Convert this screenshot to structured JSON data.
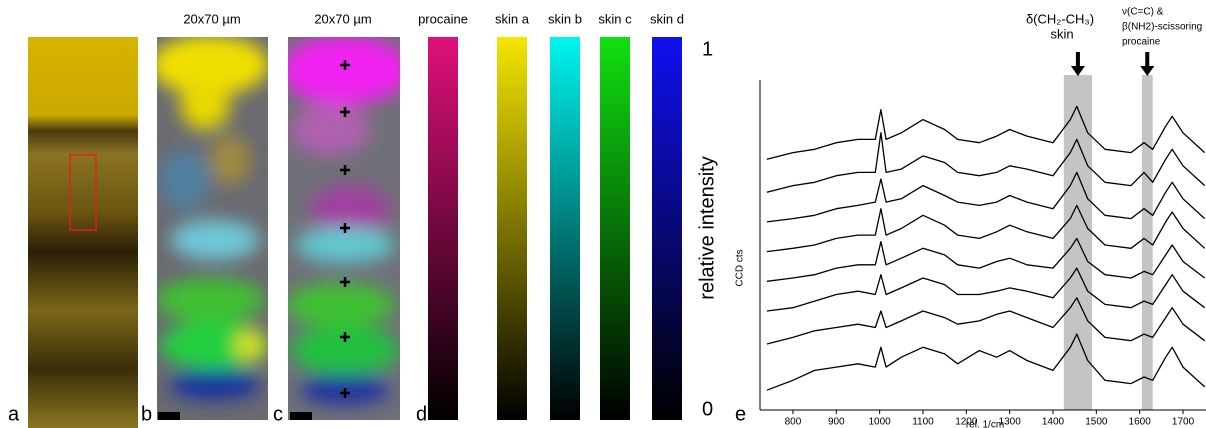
{
  "panels": {
    "a": {
      "label": "a"
    },
    "b": {
      "label": "b",
      "title": "20x70 µm"
    },
    "c": {
      "label": "c",
      "title": "20x70 µm"
    },
    "d": {
      "label": "d",
      "colorbars": [
        "procaine",
        "skin a",
        "skin b",
        "skin c",
        "skin d"
      ],
      "max_label": "1",
      "min_label": "0",
      "axis_label": "relative intensity"
    },
    "e": {
      "label": "e"
    }
  },
  "chart_data": {
    "type": "line",
    "x_label": "rel. 1/cm",
    "y_label": "CCD cts",
    "annotations": [
      "δ(CH₂-CH₃)",
      "skin",
      "ν(C=C) &",
      "β(NH2)-scissoring",
      "procaine"
    ],
    "highlight_bands": [
      [
        1425,
        1490
      ],
      [
        1605,
        1630
      ]
    ],
    "xlim": [
      724,
      1753
    ],
    "xticks": [
      800,
      900,
      1000,
      1100,
      1200,
      1300,
      1400,
      1500,
      1600,
      1700
    ],
    "ylim": [
      0,
      10
    ],
    "x": [
      740,
      800,
      850,
      900,
      950,
      990,
      1003,
      1015,
      1050,
      1100,
      1150,
      1180,
      1230,
      1270,
      1300,
      1340,
      1400,
      1440,
      1455,
      1480,
      1520,
      1580,
      1610,
      1630,
      1660,
      1675,
      1700,
      1750
    ],
    "series": [
      {
        "color": "#000000",
        "values": [
          7.6,
          7.8,
          7.9,
          8.1,
          8.2,
          8.2,
          9.1,
          8.2,
          8.4,
          8.8,
          8.5,
          8.2,
          8.1,
          8.3,
          8.5,
          8.3,
          8.1,
          8.8,
          9.2,
          8.4,
          7.9,
          7.8,
          8.1,
          7.9,
          8.6,
          8.9,
          8.4,
          7.8
        ]
      },
      {
        "color": "#000000",
        "values": [
          6.6,
          6.8,
          6.9,
          7.1,
          7.2,
          7.2,
          8.4,
          7.2,
          7.3,
          7.7,
          7.5,
          7.2,
          7.1,
          7.2,
          7.4,
          7.3,
          7.1,
          7.8,
          8.2,
          7.4,
          6.9,
          6.8,
          7.2,
          6.9,
          7.6,
          7.9,
          7.4,
          6.8
        ]
      },
      {
        "color": "#000000",
        "values": [
          5.7,
          5.8,
          5.9,
          6.1,
          6.2,
          6.3,
          7.0,
          6.3,
          6.4,
          6.8,
          6.5,
          6.3,
          6.2,
          6.3,
          6.5,
          6.3,
          6.1,
          6.8,
          7.2,
          6.4,
          5.9,
          5.8,
          6.1,
          5.9,
          6.6,
          6.9,
          6.4,
          5.8
        ]
      },
      {
        "color": "#000000",
        "values": [
          4.8,
          4.9,
          5.0,
          5.2,
          5.3,
          5.3,
          6.1,
          5.3,
          5.5,
          5.9,
          5.6,
          5.3,
          5.2,
          5.4,
          5.6,
          5.4,
          5.2,
          5.8,
          6.2,
          5.5,
          5.0,
          4.9,
          5.2,
          5.0,
          5.7,
          6.0,
          5.5,
          4.9
        ]
      },
      {
        "color": "#000000",
        "values": [
          3.9,
          4.0,
          4.1,
          4.3,
          4.4,
          4.4,
          5.1,
          4.4,
          4.6,
          4.9,
          4.7,
          4.4,
          4.3,
          4.5,
          4.6,
          4.4,
          4.3,
          4.9,
          5.2,
          4.5,
          4.1,
          4.0,
          4.2,
          4.1,
          4.7,
          5.0,
          4.5,
          4.0
        ]
      },
      {
        "color": "#000000",
        "values": [
          3.0,
          3.1,
          3.3,
          3.5,
          3.6,
          3.5,
          4.1,
          3.5,
          3.7,
          4.0,
          3.8,
          3.5,
          3.5,
          3.6,
          3.7,
          3.6,
          3.4,
          4.0,
          4.3,
          3.6,
          3.2,
          3.1,
          3.3,
          3.2,
          3.8,
          4.1,
          3.6,
          3.1
        ]
      },
      {
        "color": "#000000",
        "values": [
          2.0,
          2.2,
          2.4,
          2.5,
          2.6,
          2.5,
          3.0,
          2.5,
          2.7,
          3.0,
          2.8,
          2.6,
          2.7,
          2.9,
          3.0,
          2.8,
          2.5,
          3.1,
          3.4,
          2.7,
          2.2,
          2.1,
          2.3,
          2.2,
          2.8,
          3.1,
          2.6,
          2.1
        ]
      },
      {
        "color": "#000000",
        "values": [
          0.6,
          0.9,
          1.2,
          1.3,
          1.4,
          1.3,
          1.9,
          1.3,
          1.6,
          1.9,
          1.7,
          1.4,
          1.8,
          1.6,
          1.8,
          1.5,
          1.2,
          1.9,
          2.3,
          1.5,
          0.9,
          0.8,
          1.0,
          0.9,
          1.6,
          1.9,
          1.3,
          0.7
        ]
      }
    ]
  }
}
